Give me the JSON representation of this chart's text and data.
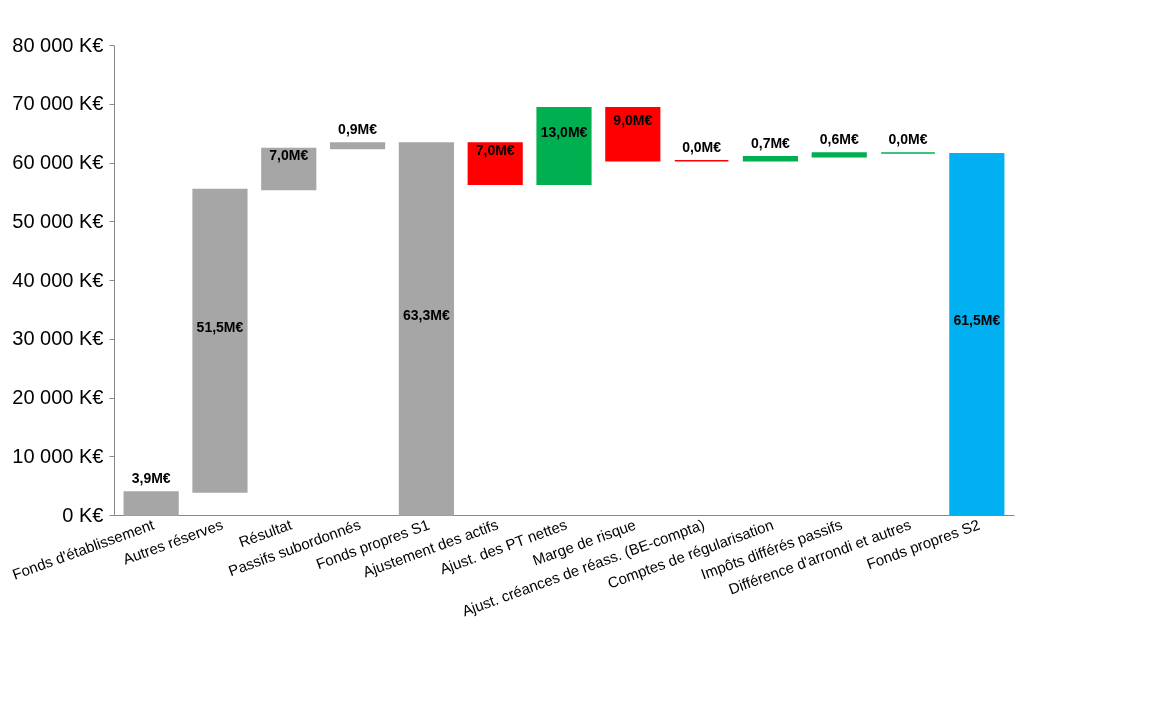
{
  "chart_data": {
    "type": "bar",
    "categories": [
      "Fonds d'établissement",
      "Autres réserves",
      "Résultat",
      "Passifs subordonnés",
      "Fonds propres S1",
      "Ajustement des actifs",
      "Ajust. des PT nettes",
      "Marge de risque",
      "Ajust. créances de réass. (BE-compta)",
      "Comptes de régularisation",
      "Impôts différés passifs",
      "Différence d'arrondi et autres",
      "Fonds propres S2"
    ],
    "values": [
      3.9,
      51.5,
      7.0,
      0.9,
      63.3,
      7.0,
      13.0,
      9.0,
      0.0,
      0.7,
      0.6,
      0.0,
      61.5
    ],
    "base": [
      0,
      3.9,
      55.4,
      62.4,
      0,
      56.3,
      56.3,
      60.3,
      60.3,
      60.3,
      61.0,
      61.6,
      0
    ],
    "value_labels": [
      "3,9M€",
      "51,5M€",
      "7,0M€",
      "0,9M€",
      "63,3M€",
      "7,0M€",
      "13,0M€",
      "9,0M€",
      "0,0M€",
      "0,7M€",
      "0,6M€",
      "0,0M€",
      "61,5M€"
    ],
    "colors": [
      "#a6a6a6",
      "#a6a6a6",
      "#a6a6a6",
      "#a6a6a6",
      "#a6a6a6",
      "#ff0000",
      "#00b050",
      "#ff0000",
      "#ff0000",
      "#00b050",
      "#00b050",
      "#00b050",
      "#00b0f0"
    ],
    "ylim": [
      0,
      80
    ],
    "yticks": [
      {
        "value": 0,
        "label": "0 K€"
      },
      {
        "value": 10,
        "label": "10 000 K€"
      },
      {
        "value": 20,
        "label": "20 000 K€"
      },
      {
        "value": 30,
        "label": "30 000 K€"
      },
      {
        "value": 40,
        "label": "40 000 K€"
      },
      {
        "value": 50,
        "label": "50 000 K€"
      },
      {
        "value": 60,
        "label": "60 000 K€"
      },
      {
        "value": 70,
        "label": "70 000 K€"
      },
      {
        "value": 80,
        "label": "80 000 K€"
      }
    ],
    "grid": false,
    "legend": false
  }
}
